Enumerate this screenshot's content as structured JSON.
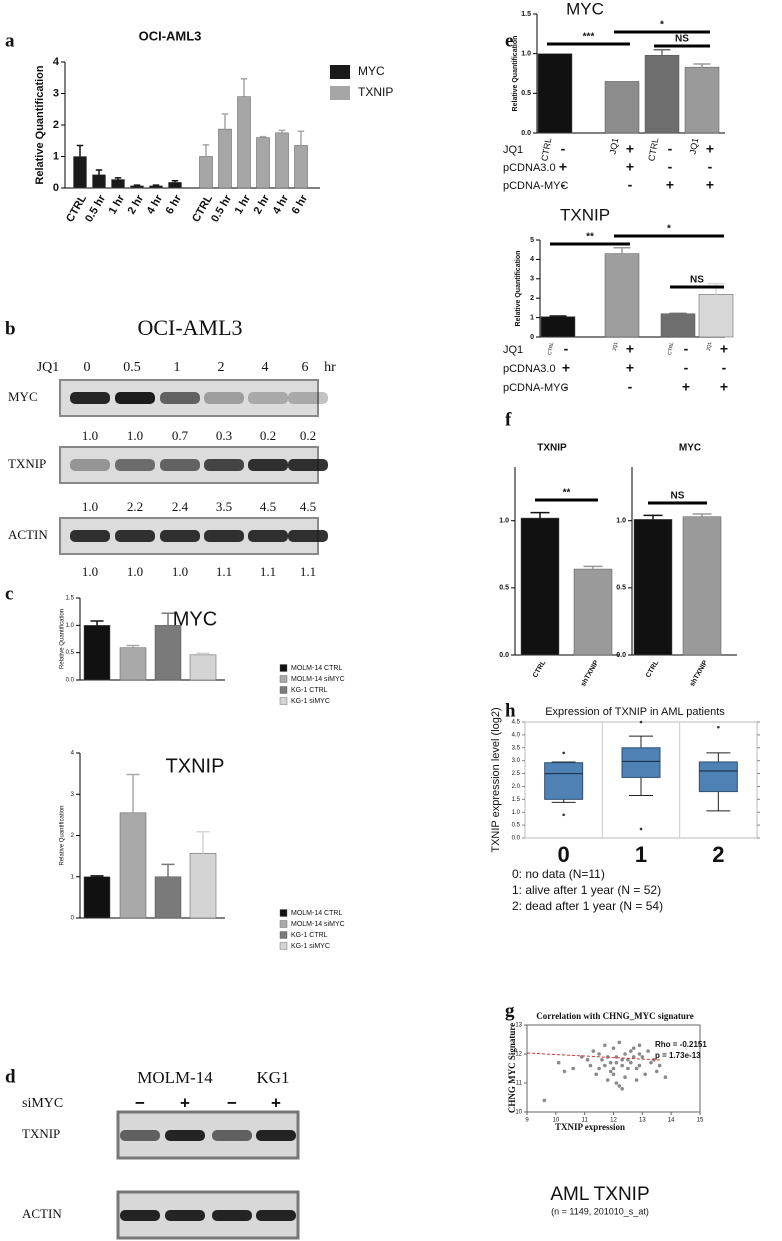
{
  "panel_labels": [
    "a",
    "b",
    "c",
    "d",
    "e",
    "f",
    "h",
    "g"
  ],
  "chart_data": [
    {
      "type": "bar",
      "title": "OCI-AML3",
      "y_label": "Relative Quantification",
      "categories": [
        "CTRL",
        "0.5 hr",
        "1 hr",
        "2 hr",
        "4 hr",
        "6 hr"
      ],
      "series": [
        {
          "name": "MYC",
          "color": "#1a1a1a",
          "values": [
            1.0,
            0.42,
            0.27,
            0.07,
            0.07,
            0.18
          ],
          "errors": [
            0.35,
            0.15,
            0.05,
            0.02,
            0.02,
            0.05
          ]
        },
        {
          "name": "TXNIP",
          "color": "#a6a6a6",
          "values": [
            1.0,
            1.87,
            2.9,
            1.6,
            1.75,
            1.35
          ],
          "errors": [
            0.37,
            0.48,
            0.57,
            0.03,
            0.08,
            0.45
          ]
        }
      ],
      "ylim": [
        0,
        4
      ],
      "yticks": [
        0,
        1,
        2,
        3,
        4
      ]
    },
    {
      "type": "bar",
      "title": "MYC",
      "y_label": "Relative Quantification",
      "series": [
        {
          "name": "MOLM-14 CTRL",
          "color": "#111111",
          "values": [
            1.0
          ],
          "errors": [
            0.08
          ]
        },
        {
          "name": "MOLM-14 siMYC",
          "color": "#a9a9a9",
          "values": [
            0.59
          ],
          "errors": [
            0.04
          ]
        },
        {
          "name": "KG-1 CTRL",
          "color": "#7a7a7a",
          "values": [
            1.0
          ],
          "errors": [
            0.22
          ]
        },
        {
          "name": "KG-1 siMYC",
          "color": "#d4d4d4",
          "values": [
            0.46
          ],
          "errors": [
            0.03
          ]
        }
      ],
      "ylim": [
        0,
        1.5
      ],
      "yticks": [
        {
          "value": 0,
          "label": "0.0"
        },
        0.5,
        {
          "value": 1,
          "label": "1.0"
        },
        1.5
      ]
    },
    {
      "type": "bar",
      "title": "TXNIP",
      "y_label": "Relative Quantification",
      "series": [
        {
          "name": "MOLM-14 CTRL",
          "color": "#111111",
          "values": [
            1.0
          ],
          "errors": [
            0.02
          ]
        },
        {
          "name": "MOLM-14 siMYC",
          "color": "#a9a9a9",
          "values": [
            2.55
          ],
          "errors": [
            0.93
          ]
        },
        {
          "name": "KG-1 CTRL",
          "color": "#7a7a7a",
          "values": [
            1.0
          ],
          "errors": [
            0.3
          ]
        },
        {
          "name": "KG-1 siMYC",
          "color": "#d4d4d4",
          "values": [
            1.57
          ],
          "errors": [
            0.52
          ]
        }
      ],
      "ylim": [
        0,
        4
      ],
      "yticks": [
        0,
        1,
        2,
        3,
        4
      ]
    },
    {
      "type": "bar",
      "title": "MYC",
      "y_label": "Relative Quantification",
      "categories": [
        "CTRL",
        "JQ1",
        "CTRL",
        "JQ1"
      ],
      "values": [
        1.0,
        0.65,
        0.98,
        0.83
      ],
      "errors": [
        null,
        null,
        0.07,
        0.04
      ],
      "colors": [
        "#111111",
        "#8c8c8c",
        "#6e6e6e",
        "#9a9a9a"
      ],
      "ylim": [
        0,
        1.5
      ],
      "yticks": [
        {
          "value": 0,
          "label": "0.0"
        },
        0.5,
        {
          "value": 1,
          "label": "1.0"
        },
        1.5
      ],
      "annotations": [
        "***",
        "*",
        "NS"
      ],
      "conditions": [
        {
          "label": "JQ1",
          "signs": [
            "-",
            "+",
            "-",
            "+"
          ]
        },
        {
          "label": "pCDNA3.0",
          "signs": [
            "+",
            "+",
            "-",
            "-"
          ]
        },
        {
          "label": "pCDNA-MYC",
          "signs": [
            "-",
            "-",
            "+",
            "+"
          ]
        }
      ]
    },
    {
      "type": "bar",
      "title": "TXNIP",
      "y_label": "Relative Quantification",
      "categories": [
        "CTRL",
        "JQ1",
        "CTRL",
        "JQ1"
      ],
      "values": [
        1.05,
        4.3,
        1.2,
        2.2
      ],
      "errors": [
        0.03,
        0.3,
        0.02,
        0.55
      ],
      "colors": [
        "#111111",
        "#9e9e9e",
        "#6e6e6e",
        "#d8d8d8"
      ],
      "ylim": [
        0,
        5
      ],
      "yticks": [
        0,
        1,
        2,
        3,
        4,
        5
      ],
      "annotations": [
        "**",
        "*",
        "NS"
      ],
      "conditions": [
        {
          "label": "JQ1",
          "signs": [
            "-",
            "+",
            "-",
            "+"
          ]
        },
        {
          "label": "pCDNA3.0",
          "signs": [
            "+",
            "+",
            "-",
            "-"
          ]
        },
        {
          "label": "pCDNA-MYC",
          "signs": [
            "-",
            "-",
            "+",
            "+"
          ]
        }
      ]
    },
    {
      "type": "bar",
      "title": "TXNIP",
      "categories": [
        "CTRL",
        "shTXNIP"
      ],
      "values": [
        1.02,
        0.64
      ],
      "errors": [
        0.04,
        0.02
      ],
      "colors": [
        "#111111",
        "#9a9a9a"
      ],
      "ylim": [
        0,
        1.4
      ],
      "yticks": [
        {
          "value": 0,
          "label": "0.0"
        },
        0.5,
        {
          "value": 1,
          "label": "1.0"
        }
      ],
      "annotations": [
        "**"
      ]
    },
    {
      "type": "bar",
      "title": "MYC",
      "categories": [
        "CTRL",
        "shTXNIP"
      ],
      "values": [
        1.01,
        1.03
      ],
      "errors": [
        0.03,
        0.02
      ],
      "colors": [
        "#111111",
        "#9a9a9a"
      ],
      "ylim": [
        0,
        1.4
      ],
      "yticks": [
        {
          "value": 0,
          "label": "0.0"
        },
        0.5,
        {
          "value": 1,
          "label": "1.0"
        }
      ],
      "annotations": [
        "NS"
      ]
    },
    {
      "type": "box",
      "title": "Expression of TXNIP in AML patients",
      "y_label": "TXNIP expression level (log2)",
      "categories": [
        "0",
        "1",
        "2"
      ],
      "color": "#4f81b5",
      "boxes": [
        {
          "whisker_low": 1.38,
          "q1": 1.5,
          "median": 2.5,
          "q3": 2.92,
          "whisker_high": 2.95,
          "outliers": [
            3.3,
            0.9
          ]
        },
        {
          "whisker_low": 1.65,
          "q1": 2.35,
          "median": 2.97,
          "q3": 3.5,
          "whisker_high": 3.95,
          "outliers": [
            4.5,
            0.35
          ]
        },
        {
          "whisker_low": 1.05,
          "q1": 1.8,
          "median": 2.6,
          "q3": 2.95,
          "whisker_high": 3.3,
          "outliers": [
            4.3
          ]
        }
      ],
      "ylim": [
        0,
        4.5
      ],
      "yticks": [
        {
          "value": 0,
          "label": "0.0"
        },
        0.5,
        {
          "value": 1,
          "label": "1.0"
        },
        1.5,
        {
          "value": 2,
          "label": "2.0"
        },
        2.5,
        {
          "value": 3,
          "label": "3.0"
        },
        3.5,
        {
          "value": 4,
          "label": "4.0"
        },
        4.5
      ],
      "notes": [
        "0: no data (N=11)",
        "1: alive after 1 year (N = 52)",
        "2: dead after 1 year (N = 54)"
      ]
    },
    {
      "type": "scatter",
      "title": "Correlation with CHNG_MYC signature",
      "x_label": "TXNIP expression",
      "y_label": "CHNG MYC Signature",
      "color": "#8a8a8a",
      "annotations": [
        "Rho = -0.2151",
        "p = 1.73e-13"
      ],
      "caption": "AML TXNIP",
      "subcaption": "(n = 1149, 201010_s_at)",
      "x": [
        12.1,
        11.8,
        12.5,
        12.9,
        11.5,
        12.3,
        13.1,
        12.0,
        11.2,
        12.7,
        12.4,
        11.9,
        13.3,
        12.2,
        11.6,
        12.8,
        10.9,
        12.6,
        13.5,
        11.4,
        12.1,
        12.9,
        11.7,
        12.3,
        13.0,
        10.6,
        12.5,
        11.8,
        12.0,
        13.2,
        11.3,
        12.6,
        12.4,
        11.1,
        12.8,
        13.6,
        10.3,
        12.2,
        11.9,
        12.7,
        13.8,
        11.5,
        12.1,
        12.3,
        10.1,
        9.6,
        12.9,
        11.7,
        13.4,
        12.0
      ],
      "y": [
        11.7,
        11.9,
        11.5,
        11.6,
        12.0,
        11.8,
        11.3,
        12.2,
        11.6,
        11.9,
        11.2,
        11.4,
        11.7,
        12.4,
        11.8,
        11.1,
        11.9,
        12.1,
        11.4,
        11.3,
        11.0,
        12.0,
        12.3,
        11.6,
        11.9,
        11.5,
        11.8,
        11.1,
        11.5,
        12.1,
        12.1,
        11.7,
        12.0,
        11.8,
        11.5,
        11.6,
        11.4,
        10.9,
        11.7,
        12.2,
        11.2,
        11.5,
        11.9,
        10.8,
        11.7,
        10.4,
        12.3,
        11.6,
        11.8,
        11.3
      ],
      "xlim": [
        9,
        15
      ],
      "xticks": [
        9,
        10,
        11,
        12,
        13,
        14,
        15
      ],
      "ylim": [
        10,
        13
      ],
      "yticks": [
        10,
        11,
        12,
        13
      ]
    }
  ],
  "blots": [
    {
      "title": "OCI-AML3",
      "treatment": "JQ1",
      "lanes": [
        "0",
        "0.5",
        "1",
        "2",
        "4",
        "6"
      ],
      "unit": "hr",
      "rows": [
        {
          "name": "MYC",
          "quant": [
            "1.0",
            "1.0",
            "0.7",
            "0.3",
            "0.2",
            "0.2"
          ]
        },
        {
          "name": "TXNIP",
          "quant": [
            "1.0",
            "2.2",
            "2.4",
            "3.5",
            "4.5",
            "4.5"
          ]
        },
        {
          "name": "ACTIN",
          "quant": [
            "1.0",
            "1.0",
            "1.0",
            "1.1",
            "1.1",
            "1.1"
          ]
        }
      ]
    },
    {
      "groups": [
        "MOLM-14",
        "KG1"
      ],
      "treatment": "siMYC",
      "signs": [
        "−",
        "+",
        "−",
        "+"
      ],
      "rows": [
        "TXNIP",
        "ACTIN"
      ]
    }
  ]
}
